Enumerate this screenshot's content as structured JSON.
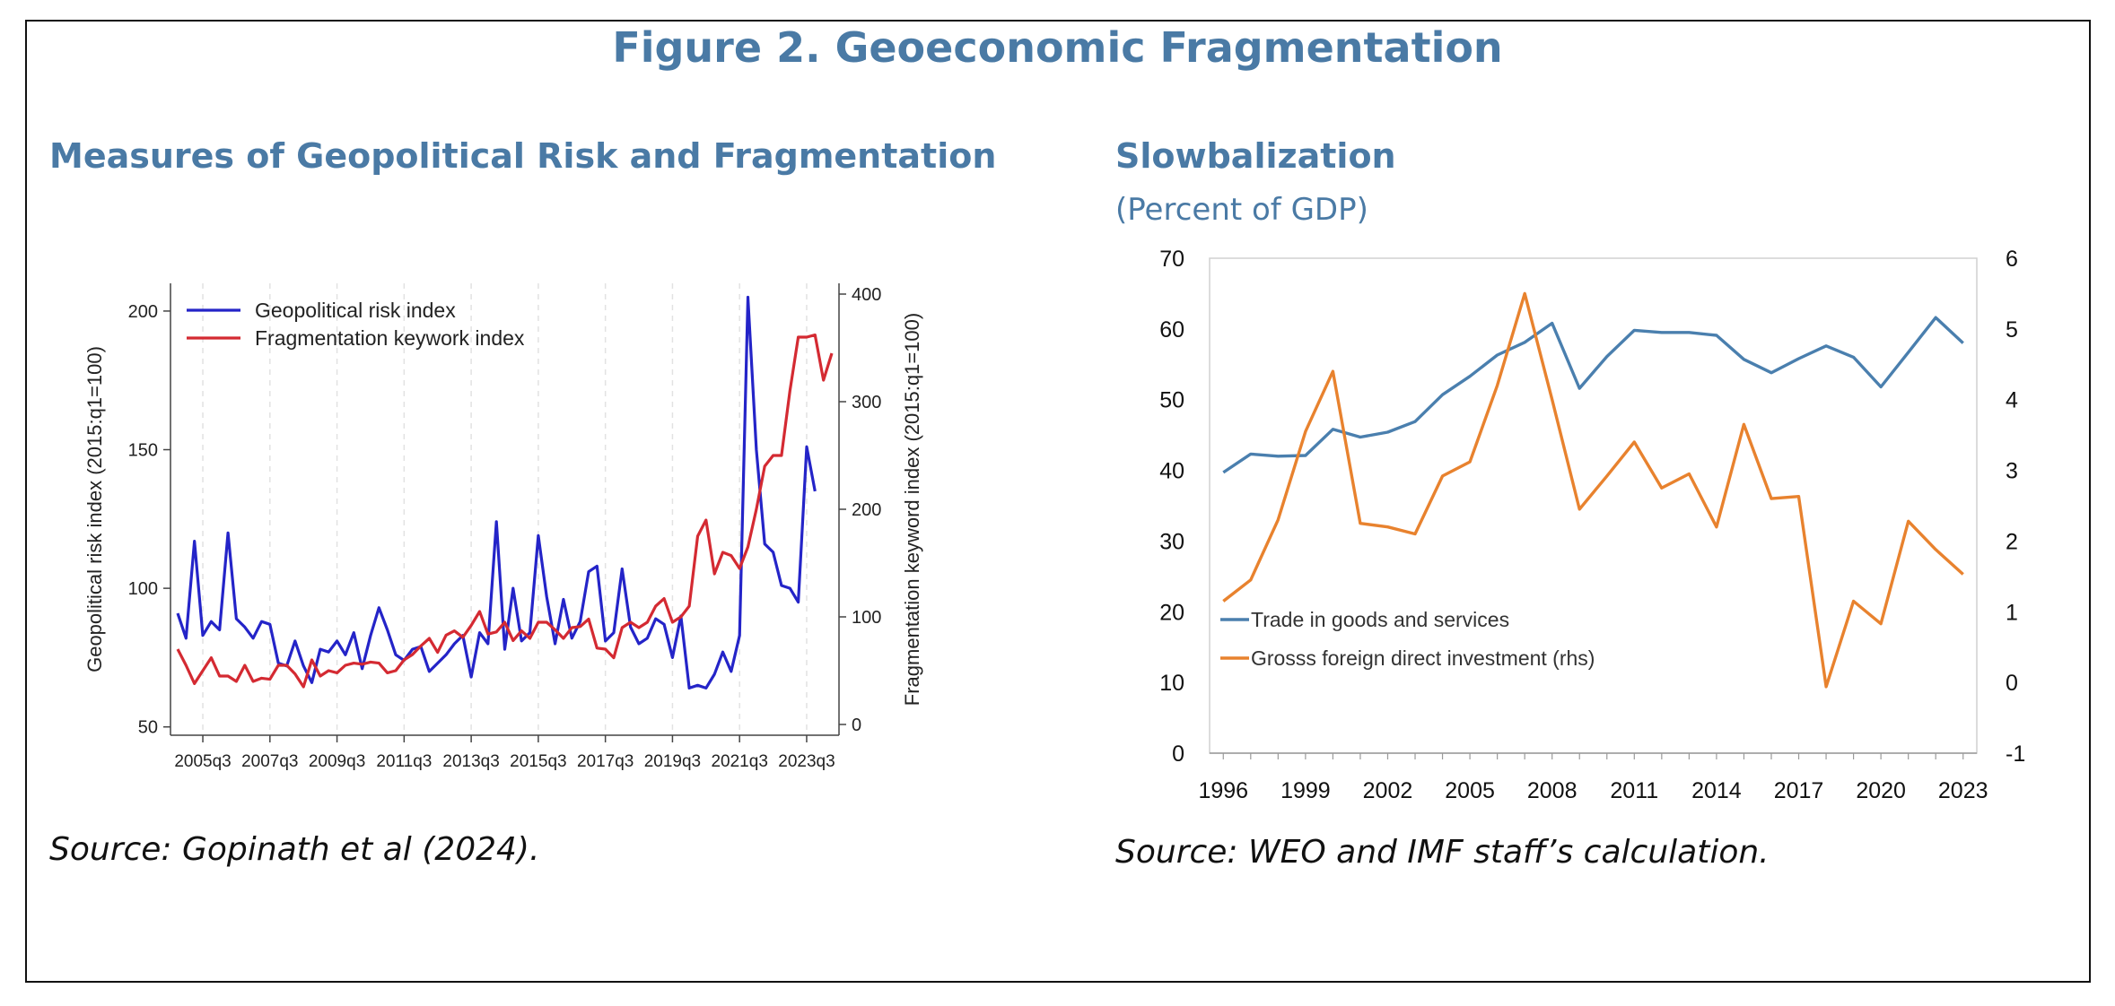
{
  "figure_title": "Figure 2. Geoeconomic Fragmentation",
  "left_panel": {
    "title": "Measures of Geopolitical Risk and Fragmentation",
    "source": "Source: Gopinath et al (2024)."
  },
  "right_panel": {
    "title": "Slowbalization",
    "subtitle": "(Percent of GDP)",
    "source": "Source: WEO and IMF staff’s calculation."
  },
  "colors": {
    "title_blue": "#4a7aa5",
    "gpr_blue": "#2424c8",
    "frag_red": "#d42a32",
    "trade_blue": "#4a7fae",
    "fdi_orange": "#e8822e"
  },
  "chart_data": [
    {
      "type": "line",
      "y_left_label": "Geopolitical risk index (2015:q1=100)",
      "y_right_label": "Fragmentation keyword index (2015:q1=100)",
      "x_tick_labels": [
        "2005q3",
        "2007q3",
        "2009q3",
        "2011q3",
        "2013q3",
        "2015q3",
        "2017q3",
        "2019q3",
        "2021q3",
        "2023q3"
      ],
      "y_left_ticks": [
        50,
        100,
        150,
        200
      ],
      "y_right_ticks": [
        0,
        100,
        200,
        300,
        400
      ],
      "y_left_lim": [
        47,
        210
      ],
      "y_right_lim": [
        -10,
        410
      ],
      "x_start": "2004q4",
      "legend_position": "top-left",
      "grid": "vertical dashed",
      "series": [
        {
          "name": "Geopolitical risk index",
          "axis": "left",
          "values": [
            91,
            82,
            117,
            83,
            88,
            85,
            120,
            89,
            86,
            82,
            88,
            87,
            73,
            72,
            81,
            72,
            66,
            78,
            77,
            81,
            76,
            84,
            71,
            83,
            93,
            85,
            76,
            74,
            78,
            79,
            70,
            73,
            76,
            80,
            83,
            68,
            84,
            80,
            124,
            78,
            100,
            81,
            84,
            119,
            97,
            80,
            96,
            82,
            88,
            106,
            108,
            81,
            84,
            107,
            86,
            80,
            82,
            89,
            87,
            75,
            90,
            64,
            65,
            64,
            69,
            77,
            70,
            83,
            205,
            150,
            116,
            113,
            101,
            100,
            95,
            151,
            135
          ]
        },
        {
          "name": "Fragmentation keywork index",
          "axis": "right",
          "values": [
            70,
            55,
            38,
            50,
            62,
            45,
            45,
            40,
            55,
            40,
            43,
            42,
            55,
            55,
            47,
            35,
            60,
            45,
            50,
            48,
            55,
            57,
            56,
            58,
            57,
            48,
            50,
            60,
            65,
            73,
            80,
            67,
            83,
            87,
            81,
            92,
            105,
            84,
            86,
            95,
            78,
            87,
            80,
            95,
            95,
            88,
            80,
            90,
            91,
            98,
            71,
            70,
            62,
            90,
            95,
            90,
            95,
            110,
            117,
            95,
            100,
            110,
            175,
            190,
            140,
            160,
            157,
            145,
            165,
            200,
            240,
            250,
            250,
            310,
            360,
            360,
            362,
            320,
            345
          ]
        }
      ]
    },
    {
      "type": "line",
      "x": [
        1996,
        1997,
        1998,
        1999,
        2000,
        2001,
        2002,
        2003,
        2004,
        2005,
        2006,
        2007,
        2008,
        2009,
        2010,
        2011,
        2012,
        2013,
        2014,
        2015,
        2016,
        2017,
        2018,
        2019,
        2020,
        2021,
        2022,
        2023
      ],
      "x_ticks": [
        1996,
        1999,
        2002,
        2005,
        2008,
        2011,
        2014,
        2017,
        2020,
        2023
      ],
      "y_left_ticks": [
        0,
        10,
        20,
        30,
        40,
        50,
        60,
        70
      ],
      "y_right_ticks": [
        -1,
        0,
        1,
        2,
        3,
        4,
        5,
        6
      ],
      "y_left_lim": [
        0,
        70
      ],
      "y_right_lim": [
        -1,
        6
      ],
      "legend_position": "bottom-left",
      "grid": "none",
      "series": [
        {
          "name": "Trade in goods and services",
          "axis": "left",
          "values": [
            39.7,
            42.3,
            42.0,
            42.1,
            45.8,
            44.7,
            45.4,
            46.9,
            50.7,
            53.3,
            56.3,
            58.1,
            60.8,
            51.6,
            56.1,
            59.8,
            59.5,
            59.5,
            59.1,
            55.7,
            53.8,
            55.8,
            57.6,
            56.0,
            51.8,
            56.7,
            61.6,
            58.0
          ]
        },
        {
          "name": "Grosss foreign direct investment (rhs)",
          "axis": "right",
          "values": [
            1.15,
            1.45,
            2.3,
            3.55,
            4.4,
            2.25,
            2.2,
            2.1,
            2.92,
            3.12,
            4.2,
            5.5,
            4.0,
            2.45,
            2.92,
            3.4,
            2.75,
            2.95,
            2.2,
            3.65,
            2.6,
            2.63,
            -0.06,
            1.15,
            0.83,
            2.28,
            1.88,
            1.53
          ]
        }
      ]
    }
  ]
}
